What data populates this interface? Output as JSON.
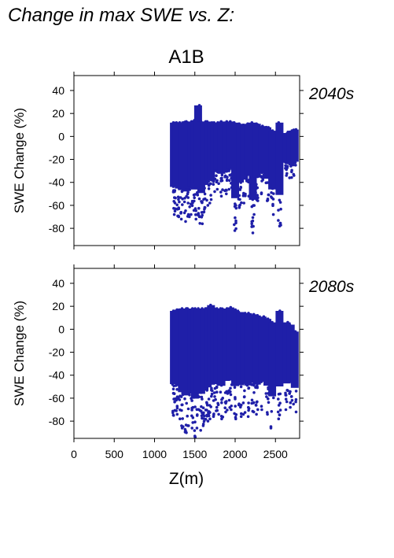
{
  "page_title": "Change in max SWE vs. Z:",
  "chart_data": {
    "type": "scatter",
    "scenario": "A1B",
    "xlabel": "Z(m)",
    "ylabel": "SWE Change (%)",
    "xlim": [
      0,
      2800
    ],
    "ylim": [
      -95,
      53
    ],
    "x_ticks": [
      0,
      500,
      1000,
      1500,
      2000,
      2500
    ],
    "y_ticks": [
      40,
      20,
      0,
      -20,
      -40,
      -60,
      -80
    ],
    "grid": false,
    "marker_color": "#1f1fa8",
    "period_label_color": "#2323b0",
    "panels": [
      {
        "period": "2040s",
        "elevation_bands": [
          {
            "x": 1240,
            "y": [
              -68,
              12
            ]
          },
          {
            "x": 1270,
            "y": [
              -65,
              12
            ]
          },
          {
            "x": 1300,
            "y": [
              -70,
              12
            ]
          },
          {
            "x": 1340,
            "y": [
              -72,
              12
            ]
          },
          {
            "x": 1380,
            "y": [
              -74,
              13
            ]
          },
          {
            "x": 1420,
            "y": [
              -70,
              12
            ]
          },
          {
            "x": 1460,
            "y": [
              -68,
              13
            ]
          },
          {
            "x": 1500,
            "y": [
              -72,
              14
            ]
          },
          {
            "x": 1540,
            "y": [
              -70,
              27
            ]
          },
          {
            "x": 1580,
            "y": [
              -76,
              13
            ]
          },
          {
            "x": 1620,
            "y": [
              -66,
              13
            ]
          },
          {
            "x": 1660,
            "y": [
              -60,
              13
            ]
          },
          {
            "x": 1700,
            "y": [
              -58,
              12
            ]
          },
          {
            "x": 1740,
            "y": [
              -48,
              12
            ]
          },
          {
            "x": 1780,
            "y": [
              -46,
              12
            ]
          },
          {
            "x": 1830,
            "y": [
              -52,
              13
            ]
          },
          {
            "x": 1890,
            "y": [
              -50,
              13
            ]
          },
          {
            "x": 1940,
            "y": [
              -46,
              13
            ]
          },
          {
            "x": 2000,
            "y": [
              -82,
              12
            ]
          },
          {
            "x": 2060,
            "y": [
              -62,
              11
            ]
          },
          {
            "x": 2110,
            "y": [
              -58,
              10
            ]
          },
          {
            "x": 2160,
            "y": [
              -52,
              11
            ]
          },
          {
            "x": 2220,
            "y": [
              -84,
              12
            ]
          },
          {
            "x": 2270,
            "y": [
              -56,
              11
            ]
          },
          {
            "x": 2340,
            "y": [
              -50,
              9
            ]
          },
          {
            "x": 2400,
            "y": [
              -56,
              8
            ]
          },
          {
            "x": 2460,
            "y": [
              -68,
              5
            ]
          },
          {
            "x": 2550,
            "y": [
              -78,
              12
            ]
          },
          {
            "x": 2640,
            "y": [
              -34,
              3
            ]
          },
          {
            "x": 2690,
            "y": [
              -36,
              5
            ]
          },
          {
            "x": 2740,
            "y": [
              -34,
              6
            ]
          }
        ]
      },
      {
        "period": "2080s",
        "elevation_bands": [
          {
            "x": 1240,
            "y": [
              -75,
              16
            ]
          },
          {
            "x": 1270,
            "y": [
              -74,
              17
            ]
          },
          {
            "x": 1300,
            "y": [
              -78,
              17
            ]
          },
          {
            "x": 1340,
            "y": [
              -86,
              18
            ]
          },
          {
            "x": 1380,
            "y": [
              -90,
              18
            ]
          },
          {
            "x": 1420,
            "y": [
              -84,
              18
            ]
          },
          {
            "x": 1460,
            "y": [
              -86,
              18
            ]
          },
          {
            "x": 1500,
            "y": [
              -94,
              18
            ]
          },
          {
            "x": 1540,
            "y": [
              -86,
              18
            ]
          },
          {
            "x": 1580,
            "y": [
              -88,
              18
            ]
          },
          {
            "x": 1620,
            "y": [
              -84,
              18
            ]
          },
          {
            "x": 1660,
            "y": [
              -80,
              18
            ]
          },
          {
            "x": 1700,
            "y": [
              -78,
              21
            ]
          },
          {
            "x": 1740,
            "y": [
              -76,
              18
            ]
          },
          {
            "x": 1780,
            "y": [
              -74,
              18
            ]
          },
          {
            "x": 1830,
            "y": [
              -78,
              18
            ]
          },
          {
            "x": 1890,
            "y": [
              -72,
              18
            ]
          },
          {
            "x": 1940,
            "y": [
              -70,
              19
            ]
          },
          {
            "x": 2000,
            "y": [
              -78,
              17
            ]
          },
          {
            "x": 2060,
            "y": [
              -76,
              15
            ]
          },
          {
            "x": 2110,
            "y": [
              -74,
              14
            ]
          },
          {
            "x": 2160,
            "y": [
              -76,
              14
            ]
          },
          {
            "x": 2220,
            "y": [
              -72,
              13
            ]
          },
          {
            "x": 2270,
            "y": [
              -74,
              12
            ]
          },
          {
            "x": 2340,
            "y": [
              -70,
              11
            ]
          },
          {
            "x": 2400,
            "y": [
              -74,
              9
            ]
          },
          {
            "x": 2460,
            "y": [
              -86,
              6
            ]
          },
          {
            "x": 2550,
            "y": [
              -78,
              16
            ]
          },
          {
            "x": 2640,
            "y": [
              -70,
              6
            ]
          },
          {
            "x": 2690,
            "y": [
              -68,
              4
            ]
          },
          {
            "x": 2740,
            "y": [
              -72,
              -2
            ]
          }
        ]
      }
    ]
  }
}
